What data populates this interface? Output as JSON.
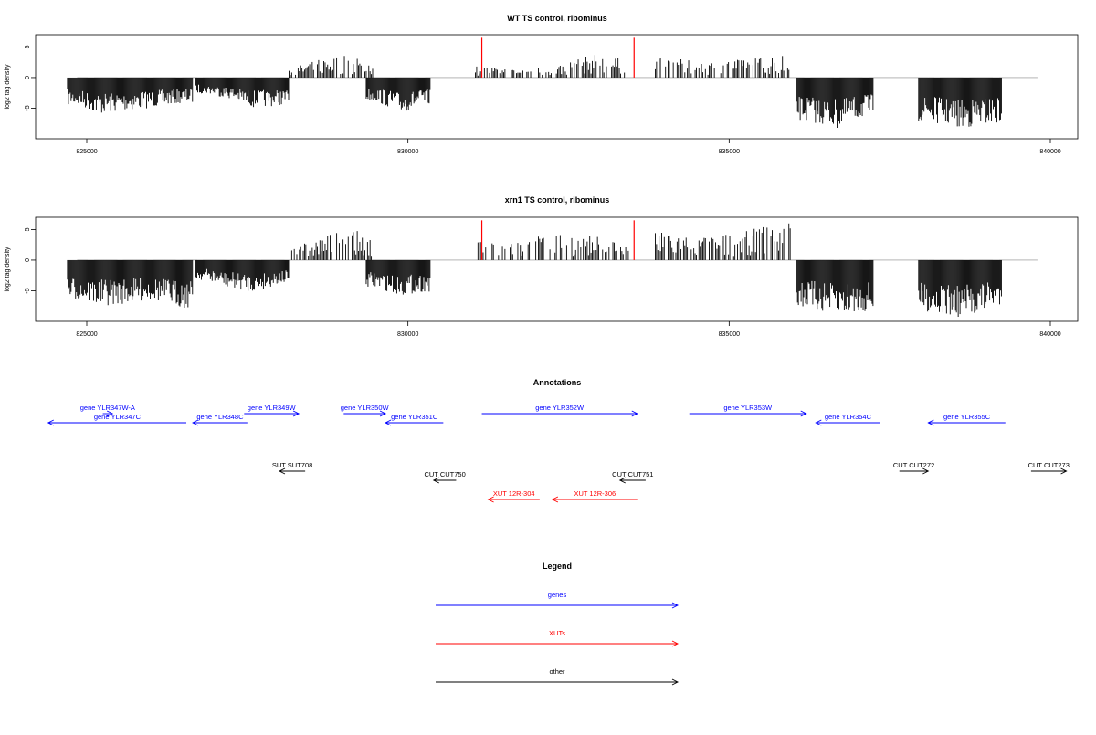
{
  "chart_data": [
    {
      "type": "bar",
      "title": "WT TS control, ribominus",
      "ylabel": "log2 tag density",
      "xlim": [
        824400,
        840800
      ],
      "ylim": [
        -10,
        7
      ],
      "xticks": [
        825000,
        830000,
        835000,
        840000
      ],
      "xtick_labels": [
        "825000",
        "830000",
        "835000",
        "840000"
      ],
      "yticks": [
        -5,
        0,
        5
      ],
      "ytick_labels": [
        "-5",
        "0",
        "5"
      ],
      "grid": false,
      "highlight_color": "#ff0000",
      "highlight_x": [
        831150,
        833520
      ],
      "highlight_top": 6.5,
      "series": [
        {
          "x": [
            824850,
            825200,
            825600,
            826000,
            826500
          ],
          "values": [
            -3.5,
            -4.6,
            -4.2,
            -3.8,
            -3.2
          ]
        },
        {
          "x": [
            826850,
            827200,
            827600,
            828000
          ],
          "values": [
            -2.0,
            -2.6,
            -3.8,
            -3.5
          ]
        },
        {
          "x": [
            828300,
            828700,
            829000,
            829300
          ],
          "values": [
            1.5,
            2.5,
            3.0,
            2.2
          ]
        },
        {
          "x": [
            829500,
            829900,
            830200
          ],
          "values": [
            -3.0,
            -4.5,
            -3.5
          ]
        },
        {
          "x": [
            831200,
            831700,
            832300,
            832900,
            833300
          ],
          "values": [
            1.5,
            1.0,
            1.5,
            3.0,
            2.5
          ]
        },
        {
          "x": [
            834000,
            834600,
            835200,
            835800
          ],
          "values": [
            2.5,
            2.0,
            2.3,
            3.0
          ]
        },
        {
          "x": [
            836200,
            836700,
            837100
          ],
          "values": [
            -5.5,
            -6.5,
            -5.0
          ]
        },
        {
          "x": [
            838100,
            838600,
            839100
          ],
          "values": [
            -5.5,
            -6.5,
            -5.8
          ]
        }
      ]
    },
    {
      "type": "bar",
      "title": "xrn1 TS control, ribominus",
      "ylabel": "log2 tag density",
      "xlim": [
        824400,
        840800
      ],
      "ylim": [
        -10,
        7
      ],
      "xticks": [
        825000,
        830000,
        835000,
        840000
      ],
      "xtick_labels": [
        "825000",
        "830000",
        "835000",
        "840000"
      ],
      "yticks": [
        -5,
        0,
        5
      ],
      "ytick_labels": [
        "-5",
        "0",
        "5"
      ],
      "grid": false,
      "highlight_color": "#ff0000",
      "highlight_x": [
        831150,
        833520
      ],
      "highlight_top": 6.5,
      "series": [
        {
          "x": [
            824850,
            825200,
            825600,
            826000,
            826500
          ],
          "values": [
            -5.0,
            -5.8,
            -5.5,
            -5.0,
            -6.0
          ]
        },
        {
          "x": [
            826850,
            827200,
            827600,
            828000
          ],
          "values": [
            -2.5,
            -3.5,
            -4.0,
            -3.0
          ]
        },
        {
          "x": [
            828300,
            828700,
            829000,
            829300
          ],
          "values": [
            2.0,
            3.0,
            4.0,
            3.5
          ]
        },
        {
          "x": [
            829500,
            829900,
            830200
          ],
          "values": [
            -3.5,
            -4.5,
            -4.0
          ]
        },
        {
          "x": [
            831200,
            831700,
            832300,
            832900,
            833300
          ],
          "values": [
            3.0,
            2.5,
            3.5,
            3.0,
            2.5
          ]
        },
        {
          "x": [
            834000,
            834600,
            835200,
            835800
          ],
          "values": [
            3.5,
            3.0,
            3.5,
            5.0
          ]
        },
        {
          "x": [
            836200,
            836700,
            837100
          ],
          "values": [
            -6.0,
            -7.0,
            -6.5
          ]
        },
        {
          "x": [
            838100,
            838600,
            839100
          ],
          "values": [
            -6.5,
            -7.5,
            -6.0
          ]
        }
      ]
    }
  ],
  "annotations": {
    "title": "Annotations",
    "features": [
      {
        "label": "gene YLR347W-A",
        "start": 825250,
        "end": 825400,
        "strand": "+",
        "kind": "gene",
        "row": 1,
        "label_row": 1
      },
      {
        "label": "gene YLR347C",
        "start": 824400,
        "end": 826550,
        "strand": "-",
        "kind": "gene",
        "row": 2,
        "label_row": 2
      },
      {
        "label": "gene YLR348C",
        "start": 826650,
        "end": 827500,
        "strand": "-",
        "kind": "gene",
        "row": 2,
        "label_row": 2
      },
      {
        "label": "gene YLR349W",
        "start": 827450,
        "end": 828300,
        "strand": "+",
        "kind": "gene",
        "row": 1,
        "label_row": 1
      },
      {
        "label": "gene YLR350W",
        "start": 829000,
        "end": 829650,
        "strand": "+",
        "kind": "gene",
        "row": 1,
        "label_row": 1
      },
      {
        "label": "gene YLR351C",
        "start": 829650,
        "end": 830550,
        "strand": "-",
        "kind": "gene",
        "row": 2,
        "label_row": 2
      },
      {
        "label": "gene YLR352W",
        "start": 831150,
        "end": 833570,
        "strand": "+",
        "kind": "gene",
        "row": 1,
        "label_row": 1
      },
      {
        "label": "gene YLR353W",
        "start": 834380,
        "end": 836200,
        "strand": "+",
        "kind": "gene",
        "row": 1,
        "label_row": 1
      },
      {
        "label": "gene YLR354C",
        "start": 836350,
        "end": 837350,
        "strand": "-",
        "kind": "gene",
        "row": 2,
        "label_row": 2
      },
      {
        "label": "gene YLR355C",
        "start": 838100,
        "end": 839300,
        "strand": "-",
        "kind": "gene",
        "row": 2,
        "label_row": 2
      },
      {
        "label": "SUT SUT708",
        "start": 828000,
        "end": 828400,
        "strand": "-",
        "kind": "other",
        "row": 3,
        "label_row": 3
      },
      {
        "label": "CUT CUT750",
        "start": 830400,
        "end": 830750,
        "strand": "-",
        "kind": "other",
        "row": 4,
        "label_row": 4
      },
      {
        "label": "CUT CUT751",
        "start": 833300,
        "end": 833700,
        "strand": "-",
        "kind": "other",
        "row": 4,
        "label_row": 4
      },
      {
        "label": "CUT CUT272",
        "start": 837650,
        "end": 838100,
        "strand": "+",
        "kind": "other",
        "row": 3,
        "label_row": 3
      },
      {
        "label": "CUT CUT273",
        "start": 839700,
        "end": 840250,
        "strand": "+",
        "kind": "other",
        "row": 3,
        "label_row": 3
      },
      {
        "label": "XUT 12R-304",
        "start": 831250,
        "end": 832050,
        "strand": "-",
        "kind": "xut",
        "row": 5,
        "label_row": 5
      },
      {
        "label": "XUT 12R-306",
        "start": 832250,
        "end": 833570,
        "strand": "-",
        "kind": "xut",
        "row": 5,
        "label_row": 5
      }
    ]
  },
  "legend": {
    "title": "Legend",
    "items": [
      {
        "label": "genes",
        "color": "#0000ff"
      },
      {
        "label": "XUTs",
        "color": "#ff0000"
      },
      {
        "label": "other",
        "color": "#000000"
      }
    ]
  },
  "colors": {
    "gene": "#0000ff",
    "xut": "#ff0000",
    "other": "#000000",
    "bars": "#000000",
    "axis": "#000000",
    "baseline": "#888888"
  }
}
